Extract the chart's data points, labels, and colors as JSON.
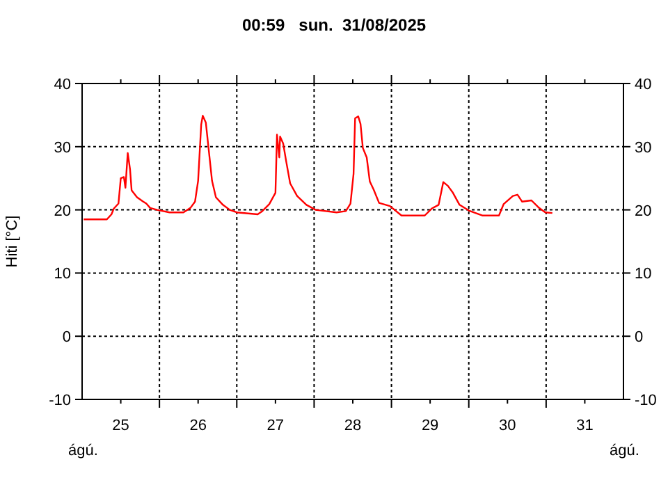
{
  "chart_data": {
    "type": "line",
    "title": "00:59   sun.  31/08/2025",
    "ylabel": "Hiti [°C]",
    "annotations": [
      "ágú.",
      "ágú."
    ],
    "xlim": [
      25,
      32
    ],
    "ylim": [
      -10,
      40
    ],
    "yticks": [
      -10,
      0,
      10,
      20,
      30,
      40
    ],
    "y2lim": [
      -10,
      40
    ],
    "y2ticks": [
      -10,
      0,
      10,
      20,
      30,
      40
    ],
    "xticks": [
      {
        "value": 25.5,
        "label": "25"
      },
      {
        "value": 26,
        "label": null
      },
      {
        "value": 26.5,
        "label": "26"
      },
      {
        "value": 27,
        "label": null
      },
      {
        "value": 27.5,
        "label": "27"
      },
      {
        "value": 28,
        "label": null
      },
      {
        "value": 28.5,
        "label": "28"
      },
      {
        "value": 29,
        "label": null
      },
      {
        "value": 29.5,
        "label": "29"
      },
      {
        "value": 30,
        "label": null
      },
      {
        "value": 30.5,
        "label": "30"
      },
      {
        "value": 31,
        "label": null
      },
      {
        "value": 31.5,
        "label": "31"
      }
    ],
    "grid": true,
    "line_style": "solid",
    "marker": "none",
    "series": [
      {
        "color": "#ff0000",
        "x": [
          25.02,
          25.32,
          25.38,
          25.41,
          25.47,
          25.5,
          25.54,
          25.56,
          25.59,
          25.62,
          25.64,
          25.71,
          25.79,
          25.83,
          25.88,
          25.97,
          26.13,
          26.31,
          26.4,
          26.46,
          26.5,
          26.54,
          26.56,
          26.6,
          26.64,
          26.68,
          26.73,
          26.82,
          26.91,
          27.0,
          27.27,
          27.33,
          27.42,
          27.5,
          27.52,
          27.55,
          27.56,
          27.6,
          27.64,
          27.69,
          27.78,
          27.9,
          28.02,
          28.29,
          28.41,
          28.47,
          28.51,
          28.53,
          28.57,
          28.6,
          28.63,
          28.68,
          28.72,
          28.77,
          28.84,
          28.98,
          29.13,
          29.43,
          29.52,
          29.61,
          29.67,
          29.73,
          29.79,
          29.88,
          30.0,
          30.18,
          30.39,
          30.45,
          30.57,
          30.63,
          30.69,
          30.81,
          30.9,
          30.99,
          31.08
        ],
        "values": [
          18.5,
          18.5,
          19.3,
          20.2,
          21,
          25,
          25.2,
          23.5,
          29,
          26.4,
          23.1,
          22,
          21.3,
          21,
          20.3,
          20,
          19.6,
          19.6,
          20.3,
          21.3,
          24.6,
          33.5,
          34.9,
          33.8,
          29.2,
          24.6,
          22,
          20.8,
          20,
          19.6,
          19.3,
          19.8,
          20.9,
          22.7,
          31.9,
          28.3,
          31.6,
          30.5,
          27.6,
          24.2,
          22.2,
          20.8,
          20,
          19.6,
          19.8,
          21,
          25.7,
          34.5,
          34.8,
          33.6,
          29.8,
          28.3,
          24.5,
          23.2,
          21.1,
          20.6,
          19.1,
          19.1,
          20.2,
          20.8,
          24.4,
          23.8,
          22.8,
          20.8,
          19.9,
          19.1,
          19.1,
          20.9,
          22.2,
          22.4,
          21.3,
          21.5,
          20.4,
          19.6,
          19.5
        ]
      }
    ]
  }
}
